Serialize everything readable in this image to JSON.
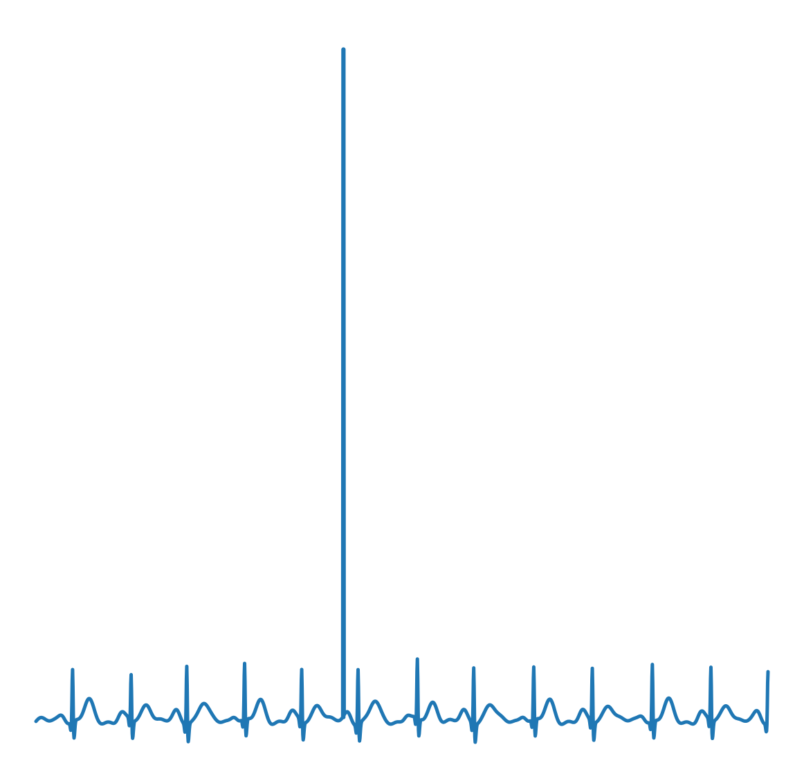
{
  "chart_data": {
    "type": "line",
    "title": "",
    "xlabel": "",
    "ylabel": "",
    "axes_visible": false,
    "grid": false,
    "legend": "none",
    "xlim": [
      0,
      1000
    ],
    "ylim": [
      -0.3,
      10.2
    ],
    "line_color": "#1f77b4",
    "spike": {
      "x": 420,
      "y": 10.0
    },
    "beat_positions": [
      50,
      130,
      206,
      285,
      363,
      440,
      521,
      598,
      680,
      760,
      842,
      922,
      1000
    ],
    "beat_peaks": [
      0.85,
      0.75,
      0.95,
      0.9,
      0.85,
      0.9,
      0.95,
      0.92,
      0.85,
      0.88,
      0.92,
      0.87,
      0.85
    ],
    "samples_per_unit": 2
  }
}
